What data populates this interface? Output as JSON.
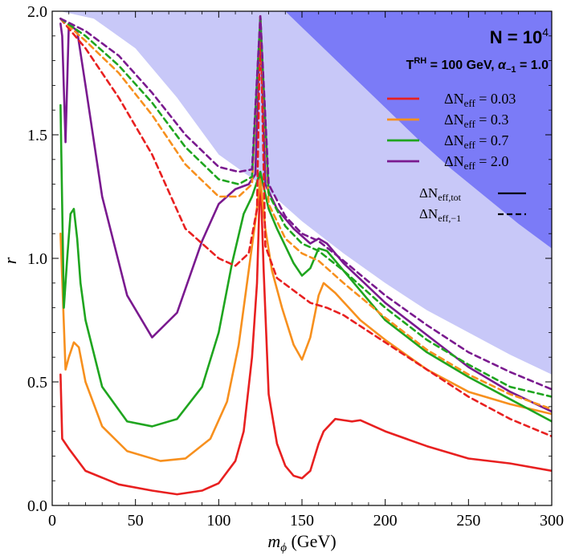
{
  "chart_data": {
    "type": "line",
    "xlabel": "mϕ (GeV)",
    "ylabel": "r",
    "xlim": [
      0,
      300
    ],
    "ylim": [
      0,
      2
    ],
    "x_ticks": [
      0,
      50,
      100,
      150,
      200,
      250,
      300
    ],
    "y_ticks": [
      0.0,
      0.5,
      1.0,
      1.5,
      2.0
    ],
    "x_tick_labels": [
      "0",
      "50",
      "100",
      "150",
      "200",
      "250",
      "300"
    ],
    "y_tick_labels": [
      "0.0",
      "0.5",
      "1.0",
      "1.5",
      "2.0"
    ],
    "annotation_title": "N = 10⁴",
    "annotation_params": "TRH = 100 GeV, α−1 = 1.0",
    "legend_position": "top-right",
    "legend_style_entries": [
      {
        "label": "ΔNeff,tot",
        "dash": "solid"
      },
      {
        "label": "ΔNeff,−1",
        "dash": "dashed"
      }
    ],
    "excluded_regions": [
      {
        "color": "#c8c8f8",
        "upper_boundary": {
          "x": [
            5,
            25,
            50,
            75,
            100,
            125,
            150,
            175,
            200,
            225,
            250,
            275,
            300
          ],
          "y": [
            2.0,
            1.97,
            1.85,
            1.65,
            1.42,
            1.3,
            1.15,
            1.02,
            0.9,
            0.79,
            0.7,
            0.61,
            0.53
          ]
        }
      },
      {
        "color": "#7b7bf7",
        "upper_boundary": {
          "x": [
            140,
            160,
            180,
            200,
            220,
            240,
            260,
            280,
            300
          ],
          "y": [
            2.0,
            1.87,
            1.74,
            1.61,
            1.48,
            1.36,
            1.25,
            1.14,
            1.04
          ]
        }
      }
    ],
    "series": [
      {
        "name": "ΔNeff = 0.03",
        "color": "#e82020",
        "dash": "solid",
        "x": [
          5,
          6,
          10,
          20,
          40,
          60,
          75,
          90,
          100,
          110,
          115,
          120,
          123,
          125,
          127,
          130,
          135,
          140,
          145,
          150,
          155,
          160,
          163,
          170,
          175,
          180,
          185,
          200,
          225,
          250,
          275,
          300
        ],
        "y": [
          0.53,
          0.27,
          0.23,
          0.14,
          0.085,
          0.06,
          0.045,
          0.06,
          0.09,
          0.18,
          0.3,
          0.6,
          0.9,
          1.35,
          0.95,
          0.45,
          0.25,
          0.16,
          0.12,
          0.11,
          0.14,
          0.25,
          0.3,
          0.35,
          0.345,
          0.34,
          0.345,
          0.3,
          0.24,
          0.19,
          0.17,
          0.14
        ]
      },
      {
        "name": "ΔNeff = 0.3",
        "color": "#f7901e",
        "dash": "solid",
        "x": [
          5,
          8,
          10,
          13,
          16,
          20,
          30,
          45,
          65,
          80,
          95,
          105,
          112,
          118,
          122,
          125,
          128,
          132,
          138,
          145,
          150,
          155,
          160,
          163,
          170,
          185,
          200,
          225,
          250,
          275,
          300
        ],
        "y": [
          1.1,
          0.55,
          0.6,
          0.66,
          0.64,
          0.5,
          0.32,
          0.22,
          0.18,
          0.19,
          0.27,
          0.42,
          0.65,
          0.95,
          1.15,
          1.32,
          1.12,
          0.95,
          0.8,
          0.65,
          0.59,
          0.68,
          0.85,
          0.9,
          0.86,
          0.75,
          0.67,
          0.55,
          0.46,
          0.41,
          0.37
        ]
      },
      {
        "name": "ΔNeff = 0.7",
        "color": "#1fa51f",
        "dash": "solid",
        "x": [
          5,
          7,
          9,
          11,
          13,
          15,
          17,
          20,
          30,
          45,
          60,
          75,
          90,
          100,
          108,
          115,
          120,
          125,
          130,
          135,
          140,
          145,
          150,
          155,
          160,
          165,
          175,
          200,
          225,
          250,
          275,
          300
        ],
        "y": [
          1.62,
          0.8,
          1.0,
          1.18,
          1.2,
          1.08,
          0.9,
          0.75,
          0.48,
          0.34,
          0.32,
          0.35,
          0.48,
          0.7,
          0.98,
          1.18,
          1.25,
          1.35,
          1.2,
          1.12,
          1.05,
          0.98,
          0.93,
          0.96,
          1.04,
          1.03,
          0.95,
          0.75,
          0.62,
          0.52,
          0.43,
          0.34
        ]
      },
      {
        "name": "ΔNeff = 2.0",
        "color": "#7a1a8f",
        "dash": "solid",
        "x": [
          5,
          6,
          8,
          10,
          15,
          20,
          30,
          45,
          60,
          75,
          90,
          100,
          110,
          118,
          122,
          125,
          128,
          135,
          145,
          155,
          160,
          165,
          175,
          200,
          225,
          250,
          275,
          300
        ],
        "y": [
          1.95,
          1.9,
          1.47,
          1.95,
          1.92,
          1.7,
          1.25,
          0.85,
          0.68,
          0.78,
          1.07,
          1.22,
          1.28,
          1.3,
          1.34,
          1.98,
          1.3,
          1.2,
          1.12,
          1.06,
          1.08,
          1.06,
          0.98,
          0.82,
          0.69,
          0.56,
          0.46,
          0.38
        ]
      },
      {
        "name": "ΔNeff = 0.03 (−1)",
        "color": "#e82020",
        "dash": "dashed",
        "x": [
          5,
          20,
          40,
          60,
          80,
          100,
          110,
          118,
          123,
          125,
          128,
          135,
          145,
          155,
          165,
          175,
          200,
          225,
          250,
          275,
          300
        ],
        "y": [
          1.97,
          1.85,
          1.65,
          1.42,
          1.12,
          1.0,
          0.97,
          1.02,
          1.2,
          1.98,
          1.05,
          0.92,
          0.87,
          0.82,
          0.8,
          0.77,
          0.66,
          0.55,
          0.44,
          0.35,
          0.28
        ]
      },
      {
        "name": "ΔNeff = 0.3 (−1)",
        "color": "#f7901e",
        "dash": "dashed",
        "x": [
          5,
          20,
          40,
          60,
          80,
          100,
          112,
          120,
          125,
          130,
          140,
          150,
          160,
          175,
          200,
          225,
          250,
          275,
          300
        ],
        "y": [
          1.97,
          1.88,
          1.75,
          1.58,
          1.38,
          1.25,
          1.25,
          1.3,
          1.98,
          1.22,
          1.08,
          1.02,
          0.99,
          0.9,
          0.76,
          0.63,
          0.53,
          0.45,
          0.39
        ]
      },
      {
        "name": "ΔNeff = 0.7 (−1)",
        "color": "#1fa51f",
        "dash": "dashed",
        "x": [
          5,
          20,
          40,
          60,
          80,
          100,
          112,
          120,
          125,
          130,
          140,
          150,
          160,
          175,
          200,
          225,
          250,
          275,
          300
        ],
        "y": [
          1.97,
          1.9,
          1.78,
          1.63,
          1.45,
          1.32,
          1.3,
          1.33,
          1.98,
          1.26,
          1.13,
          1.06,
          1.03,
          0.95,
          0.8,
          0.67,
          0.57,
          0.48,
          0.44
        ]
      },
      {
        "name": "ΔNeff = 2.0 (−1)",
        "color": "#7a1a8f",
        "dash": "dashed",
        "x": [
          5,
          20,
          40,
          60,
          80,
          100,
          112,
          120,
          125,
          130,
          140,
          150,
          160,
          175,
          200,
          225,
          250,
          275,
          300
        ],
        "y": [
          1.97,
          1.92,
          1.82,
          1.67,
          1.5,
          1.37,
          1.35,
          1.36,
          1.98,
          1.3,
          1.17,
          1.1,
          1.07,
          0.99,
          0.85,
          0.73,
          0.62,
          0.54,
          0.47
        ]
      }
    ]
  }
}
